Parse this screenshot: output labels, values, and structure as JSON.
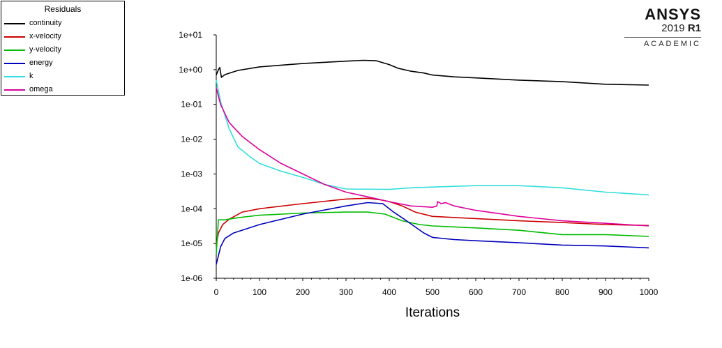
{
  "logo": {
    "brand": "ANSYS",
    "version": "2019",
    "release": "R1",
    "edition": "ACADEMIC"
  },
  "legend": {
    "title": "Residuals"
  },
  "chart_data": {
    "type": "line",
    "title": "",
    "xlabel": "Iterations",
    "ylabel": "",
    "xlim": [
      0,
      1000
    ],
    "y_scale": "log",
    "ylim": [
      1e-06,
      10
    ],
    "x_ticks": [
      "0",
      "100",
      "200",
      "300",
      "400",
      "500",
      "600",
      "700",
      "800",
      "900",
      "1000"
    ],
    "y_ticks": [
      "1e-06",
      "1e-05",
      "1e-04",
      "1e-03",
      "1e-02",
      "1e-01",
      "1e+00",
      "1e+01"
    ],
    "grid": false,
    "legend_position": "top-left outside",
    "series": [
      {
        "name": "continuity",
        "color": "#000000",
        "points": [
          [
            0,
            0.7
          ],
          [
            5,
            1.0
          ],
          [
            8,
            1.15
          ],
          [
            12,
            0.6
          ],
          [
            20,
            0.72
          ],
          [
            50,
            0.95
          ],
          [
            100,
            1.2
          ],
          [
            200,
            1.5
          ],
          [
            300,
            1.75
          ],
          [
            340,
            1.85
          ],
          [
            370,
            1.8
          ],
          [
            400,
            1.4
          ],
          [
            420,
            1.1
          ],
          [
            450,
            0.9
          ],
          [
            480,
            0.8
          ],
          [
            500,
            0.7
          ],
          [
            550,
            0.62
          ],
          [
            600,
            0.58
          ],
          [
            700,
            0.5
          ],
          [
            800,
            0.45
          ],
          [
            900,
            0.38
          ],
          [
            1000,
            0.36
          ]
        ]
      },
      {
        "name": "x-velocity",
        "color": "#cc0000",
        "points": [
          [
            0,
            9e-06
          ],
          [
            5,
            2e-05
          ],
          [
            15,
            3.5e-05
          ],
          [
            30,
            5e-05
          ],
          [
            60,
            8e-05
          ],
          [
            100,
            0.0001
          ],
          [
            200,
            0.00014
          ],
          [
            300,
            0.00019
          ],
          [
            350,
            0.0002
          ],
          [
            380,
            0.00018
          ],
          [
            400,
            0.00016
          ],
          [
            430,
            0.00012
          ],
          [
            460,
            8e-05
          ],
          [
            500,
            6e-05
          ],
          [
            600,
            5.2e-05
          ],
          [
            700,
            4.5e-05
          ],
          [
            800,
            4e-05
          ],
          [
            900,
            3.5e-05
          ],
          [
            1000,
            3.3e-05
          ]
        ]
      },
      {
        "name": "y-velocity",
        "color": "#00bb00",
        "points": [
          [
            0,
            5e-06
          ],
          [
            5,
            4.8e-05
          ],
          [
            20,
            4.8e-05
          ],
          [
            50,
            5.5e-05
          ],
          [
            100,
            6.5e-05
          ],
          [
            200,
            7.5e-05
          ],
          [
            300,
            8e-05
          ],
          [
            350,
            8e-05
          ],
          [
            390,
            7e-05
          ],
          [
            430,
            4.5e-05
          ],
          [
            470,
            3.5e-05
          ],
          [
            500,
            3.2e-05
          ],
          [
            600,
            2.8e-05
          ],
          [
            700,
            2.4e-05
          ],
          [
            780,
            1.9e-05
          ],
          [
            800,
            1.8e-05
          ],
          [
            900,
            1.8e-05
          ],
          [
            1000,
            1.6e-05
          ]
        ]
      },
      {
        "name": "energy",
        "color": "#0000bb",
        "points": [
          [
            0,
            2.5e-06
          ],
          [
            10,
            8e-06
          ],
          [
            20,
            1.4e-05
          ],
          [
            40,
            2e-05
          ],
          [
            100,
            3.5e-05
          ],
          [
            200,
            7e-05
          ],
          [
            300,
            0.00012
          ],
          [
            350,
            0.00015
          ],
          [
            385,
            0.00014
          ],
          [
            410,
            8e-05
          ],
          [
            440,
            4.5e-05
          ],
          [
            460,
            3e-05
          ],
          [
            480,
            2e-05
          ],
          [
            500,
            1.5e-05
          ],
          [
            550,
            1.3e-05
          ],
          [
            600,
            1.2e-05
          ],
          [
            700,
            1.05e-05
          ],
          [
            800,
            9e-06
          ],
          [
            900,
            8.5e-06
          ],
          [
            1000,
            7.5e-06
          ]
        ]
      },
      {
        "name": "k",
        "color": "#33dddd",
        "points": [
          [
            0,
            0.5
          ],
          [
            10,
            0.12
          ],
          [
            30,
            0.02
          ],
          [
            50,
            0.006
          ],
          [
            80,
            0.003
          ],
          [
            100,
            0.002
          ],
          [
            150,
            0.0012
          ],
          [
            200,
            0.0008
          ],
          [
            250,
            0.0005
          ],
          [
            300,
            0.00037
          ],
          [
            400,
            0.00036
          ],
          [
            450,
            0.0004
          ],
          [
            500,
            0.00042
          ],
          [
            600,
            0.00046
          ],
          [
            700,
            0.00046
          ],
          [
            800,
            0.0004
          ],
          [
            900,
            0.0003
          ],
          [
            1000,
            0.00025
          ]
        ]
      },
      {
        "name": "omega",
        "color": "#dd0099",
        "points": [
          [
            0,
            0.3
          ],
          [
            10,
            0.1
          ],
          [
            30,
            0.03
          ],
          [
            60,
            0.012
          ],
          [
            100,
            0.005
          ],
          [
            150,
            0.002
          ],
          [
            200,
            0.001
          ],
          [
            250,
            0.0005
          ],
          [
            300,
            0.0003
          ],
          [
            350,
            0.00022
          ],
          [
            400,
            0.00016
          ],
          [
            450,
            0.00012
          ],
          [
            500,
            0.00011
          ],
          [
            510,
            0.00012
          ],
          [
            512,
            0.00016
          ],
          [
            520,
            0.00014
          ],
          [
            530,
            0.00015
          ],
          [
            550,
            0.00012
          ],
          [
            600,
            9e-05
          ],
          [
            700,
            6e-05
          ],
          [
            800,
            4.5e-05
          ],
          [
            900,
            3.8e-05
          ],
          [
            1000,
            3.2e-05
          ]
        ]
      }
    ]
  }
}
